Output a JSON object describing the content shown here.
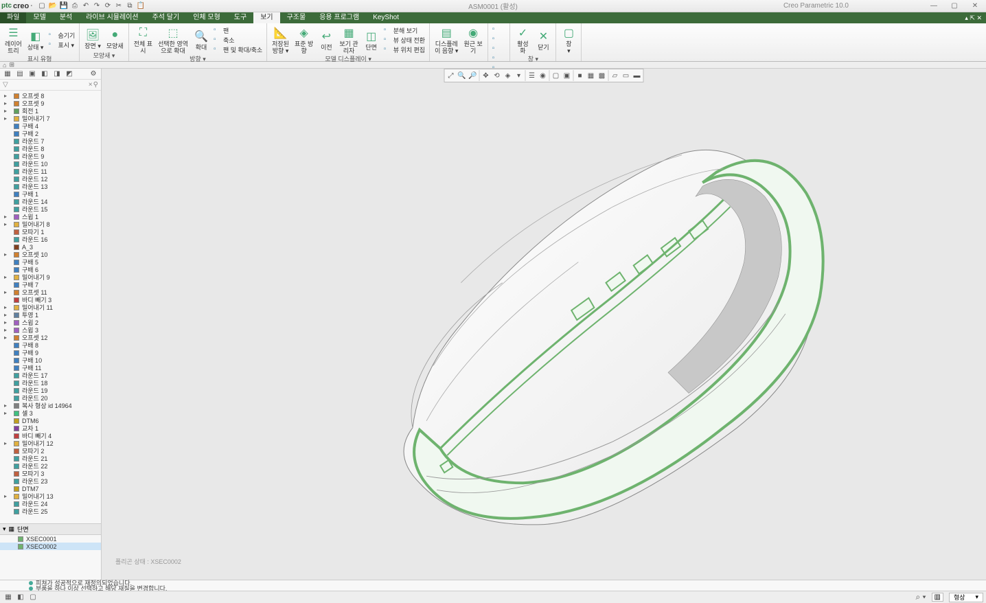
{
  "app": {
    "brand": "creo",
    "vendor": "ptc"
  },
  "title": {
    "doc": "ASM0001 (활성)",
    "app": "Creo Parametric 10.0"
  },
  "qat_icons": [
    "new",
    "open",
    "save",
    "saveas",
    "undo",
    "redo",
    "regen",
    "cut",
    "copy",
    "paste"
  ],
  "window_buttons": [
    "min",
    "max",
    "close"
  ],
  "tabs": {
    "items": [
      {
        "id": "file",
        "label": "파일",
        "kind": "file"
      },
      {
        "id": "model",
        "label": "모델"
      },
      {
        "id": "analysis",
        "label": "분석"
      },
      {
        "id": "livesim",
        "label": "라이브 시뮬레이션"
      },
      {
        "id": "annotate",
        "label": "주석 달기"
      },
      {
        "id": "manikin",
        "label": "인체 모형"
      },
      {
        "id": "tools",
        "label": "도구"
      },
      {
        "id": "view",
        "label": "보기",
        "active": true
      },
      {
        "id": "framework",
        "label": "구조물"
      },
      {
        "id": "apps",
        "label": "응용 프로그램"
      },
      {
        "id": "keyshot",
        "label": "KeyShot"
      }
    ]
  },
  "ribbon": {
    "groups": [
      {
        "label": "표시 유형",
        "items": [
          {
            "txt": "레이어\n트리",
            "icon": "layers"
          },
          {
            "txt": "상태 ▾",
            "icon": "state"
          },
          {
            "txt": "숨기기",
            "icon": "hide",
            "small": true
          },
          {
            "txt": "표시 ▾",
            "icon": "show",
            "small": true
          }
        ]
      },
      {
        "label": "모양새 ▾",
        "items": [
          {
            "txt": "장면 ▾",
            "icon": "scene"
          },
          {
            "txt": "모양새",
            "icon": "appearance"
          }
        ]
      },
      {
        "label": "방향 ▾",
        "items": [
          {
            "txt": "전체 표\n시",
            "icon": "fit"
          },
          {
            "txt": "선택한 영역\n으로 확대",
            "icon": "zoomsel"
          },
          {
            "txt": "확대",
            "icon": "zoom"
          },
          {
            "txt": "팬",
            "icon": "pan",
            "small": true
          },
          {
            "txt": "축소",
            "icon": "shrink",
            "small": true
          },
          {
            "txt": "팬 및 확대/축소",
            "icon": "panzoom",
            "small": true
          }
        ]
      },
      {
        "label": "모델 디스플레이 ▾",
        "items": [
          {
            "txt": "저장된\n방향 ▾",
            "icon": "savedview"
          },
          {
            "txt": "표준 방\n향",
            "icon": "stdview"
          },
          {
            "txt": "이전",
            "icon": "prev"
          },
          {
            "txt": "보기 관\n리자",
            "icon": "viewmgr"
          },
          {
            "txt": "단면",
            "icon": "section"
          },
          {
            "txt": "분해 보기",
            "icon": "explode",
            "small": true
          },
          {
            "txt": "뷰 상태 전환",
            "icon": "switchstate",
            "small": true
          },
          {
            "txt": "뷰 위치 편집",
            "icon": "editpos",
            "small": true
          }
        ]
      },
      {
        "label": "",
        "items": [
          {
            "txt": "디스플레\n이 음향 ▾",
            "icon": "dispopt"
          },
          {
            "txt": "원근 보\n기",
            "icon": "persp"
          }
        ]
      },
      {
        "label": "표시 ▾",
        "items": [
          {
            "icon": "axis",
            "small": true
          },
          {
            "icon": "point",
            "small": true
          },
          {
            "icon": "csys",
            "small": true
          },
          {
            "icon": "plane",
            "small": true
          },
          {
            "icon": "notes",
            "small": true
          },
          {
            "icon": "tol",
            "small": true
          },
          {
            "icon": "datum",
            "small": true
          },
          {
            "icon": "surf",
            "small": true
          },
          {
            "icon": "thick",
            "small": true
          },
          {
            "icon": "dim",
            "small": true
          }
        ]
      },
      {
        "label": "창 ▾",
        "items": [
          {
            "txt": "활성\n화",
            "icon": "activate"
          },
          {
            "txt": "닫기",
            "icon": "closewin"
          }
        ]
      },
      {
        "label": "",
        "items": [
          {
            "txt": "창\n▾",
            "icon": "windows"
          }
        ]
      }
    ]
  },
  "graphics_toolbar": [
    "refit",
    "zoomin",
    "zoomout",
    "sep",
    "pan",
    "spin",
    "orient",
    "saved",
    "sep",
    "layers",
    "perspective",
    "sep",
    "noshade",
    "hidden",
    "sep",
    "shade",
    "shadeedge",
    "shadewire",
    "sep",
    "wire",
    "hline",
    "edge"
  ],
  "tree": {
    "items": [
      {
        "label": "오프셋 8",
        "icon": "offset",
        "exp": "▸"
      },
      {
        "label": "오프셋 9",
        "icon": "offset",
        "exp": "▸"
      },
      {
        "label": "회전 1",
        "icon": "revolve",
        "exp": "▸"
      },
      {
        "label": "밀어내기 7",
        "icon": "extrude",
        "exp": "▸"
      },
      {
        "label": "구배 4",
        "icon": "draft"
      },
      {
        "label": "구배 2",
        "icon": "draft"
      },
      {
        "label": "라운드 7",
        "icon": "round"
      },
      {
        "label": "라운드 8",
        "icon": "round"
      },
      {
        "label": "라운드 9",
        "icon": "round"
      },
      {
        "label": "라운드 10",
        "icon": "round"
      },
      {
        "label": "라운드 11",
        "icon": "round"
      },
      {
        "label": "라운드 12",
        "icon": "round"
      },
      {
        "label": "라운드 13",
        "icon": "round"
      },
      {
        "label": "구배 1",
        "icon": "draft"
      },
      {
        "label": "라운드 14",
        "icon": "round"
      },
      {
        "label": "라운드 15",
        "icon": "round"
      },
      {
        "label": "스윕 1",
        "icon": "sweep",
        "exp": "▸"
      },
      {
        "label": "밀어내기 8",
        "icon": "extrude",
        "exp": "▸"
      },
      {
        "label": "모따기 1",
        "icon": "chamfer"
      },
      {
        "label": "라운드 16",
        "icon": "round"
      },
      {
        "label": "A_3",
        "icon": "axis"
      },
      {
        "label": "오프셋 10",
        "icon": "offset",
        "exp": "▸"
      },
      {
        "label": "구배 5",
        "icon": "draft"
      },
      {
        "label": "구배 6",
        "icon": "draft"
      },
      {
        "label": "밀어내기 9",
        "icon": "extrude",
        "exp": "▸"
      },
      {
        "label": "구배 7",
        "icon": "draft"
      },
      {
        "label": "오프셋 11",
        "icon": "offset",
        "exp": "▸"
      },
      {
        "label": "바디 빼기 3",
        "icon": "subtract"
      },
      {
        "label": "밀어내기 11",
        "icon": "extrude",
        "exp": "▸"
      },
      {
        "label": "투영 1",
        "icon": "project",
        "exp": "▸"
      },
      {
        "label": "스윕 2",
        "icon": "sweep",
        "exp": "▸"
      },
      {
        "label": "스윕 3",
        "icon": "sweep",
        "exp": "▸"
      },
      {
        "label": "오프셋 12",
        "icon": "offset",
        "exp": "▸"
      },
      {
        "label": "구배 8",
        "icon": "draft"
      },
      {
        "label": "구배 9",
        "icon": "draft"
      },
      {
        "label": "구배 10",
        "icon": "draft"
      },
      {
        "label": "구배 11",
        "icon": "draft"
      },
      {
        "label": "라운드 17",
        "icon": "round"
      },
      {
        "label": "라운드 18",
        "icon": "round"
      },
      {
        "label": "라운드 19",
        "icon": "round"
      },
      {
        "label": "라운드 20",
        "icon": "round"
      },
      {
        "label": "복사 형상 id 14964",
        "icon": "copygeom",
        "exp": "▸"
      },
      {
        "label": "셀 3",
        "icon": "shell",
        "exp": "▸"
      },
      {
        "label": "DTM6",
        "icon": "datum"
      },
      {
        "label": "교차 1",
        "icon": "intersect"
      },
      {
        "label": "바디 빼기 4",
        "icon": "subtract"
      },
      {
        "label": "밀어내기 12",
        "icon": "extrude",
        "exp": "▸"
      },
      {
        "label": "모따기 2",
        "icon": "chamfer"
      },
      {
        "label": "라운드 21",
        "icon": "round"
      },
      {
        "label": "라운드 22",
        "icon": "round"
      },
      {
        "label": "모따기 3",
        "icon": "chamfer"
      },
      {
        "label": "라운드 23",
        "icon": "round"
      },
      {
        "label": "DTM7",
        "icon": "datum"
      },
      {
        "label": "밀어내기 13",
        "icon": "extrude",
        "exp": "▸"
      },
      {
        "label": "라운드 24",
        "icon": "round"
      },
      {
        "label": "라운드 25",
        "icon": "round"
      }
    ],
    "section_header": "단면",
    "sections": [
      {
        "label": "XSEC0001"
      },
      {
        "label": "XSEC0002",
        "selected": true
      }
    ]
  },
  "icon_colors": {
    "offset": "#d08030",
    "revolve": "#60a060",
    "extrude": "#e0b040",
    "draft": "#4080c0",
    "round": "#40a0a0",
    "sweep": "#a060c0",
    "chamfer": "#c06040",
    "axis": "#804020",
    "subtract": "#c04040",
    "project": "#6080a0",
    "copygeom": "#808080",
    "shell": "#40c080",
    "datum": "#c0a020",
    "intersect": "#8040a0"
  },
  "watermark": "폴리곤 상태 : XSEC0002",
  "messages": [
    "피쳐가 성공적으로 재정의되었습니다.",
    "부품을 하나 이상 선택하고 해당 재질을 변경합니다."
  ],
  "statusbar": {
    "search_icon": "⌕",
    "find_field": "",
    "right_label": "형상"
  },
  "model": {
    "cut_color": "#6eb36e",
    "cut_fill": "#f0f8f0",
    "body_fill": "#f5f5f5",
    "shade_fill": "#c8c8c8",
    "edge_color": "#888888",
    "background": "#e8e8e8"
  }
}
